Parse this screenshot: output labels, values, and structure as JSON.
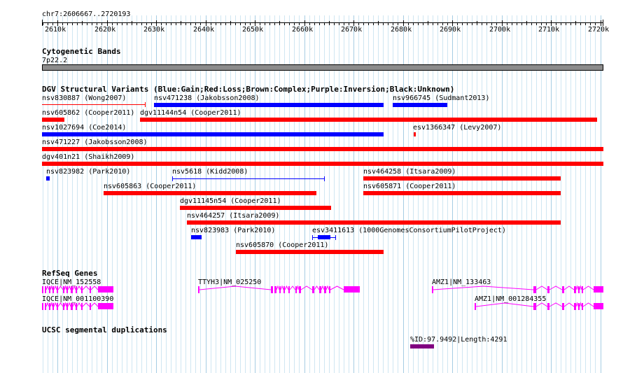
{
  "ruler": {
    "location": "chr7:2606667..2720193",
    "ticks": [
      "2610k",
      "2620k",
      "2630k",
      "2640k",
      "2650k",
      "2660k",
      "2670k",
      "2680k",
      "2690k",
      "2700k",
      "2710k",
      "2720k"
    ]
  },
  "cytobands": {
    "title": "Cytogenetic Bands",
    "band": "7p22.2"
  },
  "dgv": {
    "title": "DGV Structural Variants (Blue:Gain;Red:Loss;Brown:Complex;Purple:Inversion;Black:Unknown)",
    "variants": [
      {
        "label": "nsv830887 (Wong2007)",
        "type": "loss"
      },
      {
        "label": "nsv471238 (Jakobsson2008)",
        "type": "gain"
      },
      {
        "label": "nsv966745 (Sudmant2013)",
        "type": "gain"
      },
      {
        "label": "nsv605862 (Cooper2011)",
        "type": "loss"
      },
      {
        "label": "dgv11144n54 (Cooper2011)",
        "type": "loss"
      },
      {
        "label": "nsv1027694 (Coe2014)",
        "type": "gain"
      },
      {
        "label": "esv1366347 (Levy2007)",
        "type": "loss"
      },
      {
        "label": "nsv471227 (Jakobsson2008)",
        "type": "loss"
      },
      {
        "label": "dgv401n21 (Shaikh2009)",
        "type": "loss"
      },
      {
        "label": "nsv823982 (Park2010)",
        "type": "gain"
      },
      {
        "label": "nsv5618 (Kidd2008)",
        "type": "gain"
      },
      {
        "label": "nsv464258 (Itsara2009)",
        "type": "loss"
      },
      {
        "label": "nsv605863 (Cooper2011)",
        "type": "loss"
      },
      {
        "label": "nsv605871 (Cooper2011)",
        "type": "loss"
      },
      {
        "label": "dgv11145n54 (Cooper2011)",
        "type": "loss"
      },
      {
        "label": "nsv464257 (Itsara2009)",
        "type": "loss"
      },
      {
        "label": "nsv823983 (Park2010)",
        "type": "gain"
      },
      {
        "label": "esv3411613 (1000GenomesConsortiumPilotProject)",
        "type": "gain"
      },
      {
        "label": "nsv605870 (Cooper2011)",
        "type": "loss"
      }
    ]
  },
  "refseq": {
    "title": "RefSeq Genes",
    "genes": [
      {
        "label": "IQCE|NM_152558"
      },
      {
        "label": "IQCE|NM_001100390"
      },
      {
        "label": "TTYH3|NM_025250"
      },
      {
        "label": "AMZ1|NM_133463"
      },
      {
        "label": "AMZ1|NM_001284355"
      }
    ]
  },
  "segdup": {
    "title": "UCSC segmental duplications",
    "items": [
      {
        "label": "%ID:97.9492|Length:4291"
      }
    ]
  },
  "colors": {
    "gain": "#0000ff",
    "loss": "#ff0000",
    "gene": "#ff00ff",
    "segdup": "#800080",
    "grid_major": "#a6cde3",
    "grid_minor": "#cfe6f2"
  }
}
